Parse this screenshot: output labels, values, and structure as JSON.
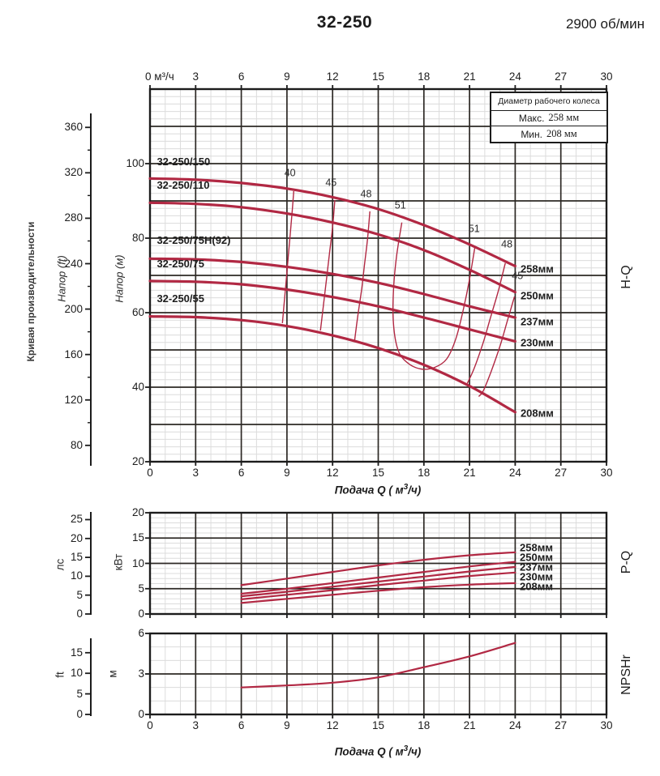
{
  "header": {
    "model": "32-250",
    "speed": "2900 об/мин"
  },
  "side_label": "Кривая производительности",
  "colors": {
    "curve": "#b12843",
    "grid_major": "#2d2925",
    "grid_minor": "#dcdcdc",
    "border": "#1c1c1c"
  },
  "flow_axis": {
    "top_first_label": "0 м³/ч",
    "major_labels": [
      "0",
      "3",
      "6",
      "9",
      "12",
      "15",
      "18",
      "21",
      "24",
      "27",
      "30"
    ],
    "title_pre": "Подача Q ( м",
    "title_sup": "3",
    "title_post": "/ч)"
  },
  "legend": {
    "title": "Диаметр рабочего колеса",
    "max_label": "Макс.",
    "max_value": "258 мм",
    "min_label": "Мин.",
    "min_value": "208 мм"
  },
  "chart_data": [
    {
      "id": "hq",
      "type": "line",
      "title": "H-Q",
      "xlabel": "Подача Q (м³/ч)",
      "xlim": [
        0,
        30
      ],
      "x_major": 3,
      "x_minor": 1,
      "ylim": [
        20,
        120
      ],
      "y_major": 10,
      "y_minor": 2,
      "primary_y": {
        "unit": "Напор (м)",
        "ticks": [
          100,
          80,
          60,
          40,
          20
        ]
      },
      "secondary_y": {
        "unit": "Напор (ft)",
        "ticks": [
          360,
          320,
          280,
          240,
          200,
          160,
          120,
          80
        ],
        "unit_factor": 0.3048
      },
      "series": [
        {
          "name": "32-250/150",
          "diameter": "258мм",
          "points": [
            [
              0,
              96
            ],
            [
              3,
              95.7
            ],
            [
              6,
              94.8
            ],
            [
              9,
              93.3
            ],
            [
              12,
              91
            ],
            [
              15,
              87.8
            ],
            [
              18,
              83.5
            ],
            [
              21,
              78.3
            ],
            [
              24,
              72.5
            ]
          ],
          "label_pos": [
            0.45,
            98.8
          ],
          "dia_pos": [
            24.35,
            71.5
          ]
        },
        {
          "name": "32-250/110",
          "diameter": "250мм",
          "points": [
            [
              0,
              89.5
            ],
            [
              3,
              89.2
            ],
            [
              6,
              88.3
            ],
            [
              9,
              86.6
            ],
            [
              12,
              84.2
            ],
            [
              15,
              81
            ],
            [
              18,
              76.8
            ],
            [
              21,
              71.5
            ],
            [
              24,
              65.5
            ]
          ],
          "label_pos": [
            0.45,
            92.5
          ],
          "dia_pos": [
            24.35,
            64.3
          ]
        },
        {
          "name": "32-250/75H(92)",
          "diameter": "237мм",
          "points": [
            [
              0,
              74.5
            ],
            [
              3,
              74.3
            ],
            [
              6,
              73.6
            ],
            [
              9,
              72.3
            ],
            [
              12,
              70.4
            ],
            [
              15,
              68
            ],
            [
              18,
              65
            ],
            [
              21,
              61.7
            ],
            [
              24,
              58.7
            ]
          ],
          "label_pos": [
            0.45,
            77.6
          ],
          "dia_pos": [
            24.35,
            57.3
          ]
        },
        {
          "name": "32-250/75",
          "diameter": "230мм",
          "points": [
            [
              0,
              68.5
            ],
            [
              3,
              68.3
            ],
            [
              6,
              67.6
            ],
            [
              9,
              66.2
            ],
            [
              12,
              64.2
            ],
            [
              15,
              61.7
            ],
            [
              18,
              58.7
            ],
            [
              21,
              55.5
            ],
            [
              24,
              52.3
            ]
          ],
          "label_pos": [
            0.45,
            71.4
          ],
          "dia_pos": [
            24.35,
            51.8
          ]
        },
        {
          "name": "32-250/55",
          "diameter": "208мм",
          "points": [
            [
              0,
              59
            ],
            [
              3,
              58.8
            ],
            [
              6,
              58
            ],
            [
              9,
              56.4
            ],
            [
              12,
              53.9
            ],
            [
              15,
              50.5
            ],
            [
              18,
              46
            ],
            [
              21,
              40.3
            ],
            [
              24,
              33.3
            ]
          ],
          "label_pos": [
            0.45,
            62
          ],
          "dia_pos": [
            24.35,
            32.8
          ]
        }
      ],
      "efficiency_lines": [
        {
          "points": [
            [
              9.45,
              92.6
            ],
            [
              9.3,
              85
            ],
            [
              9.15,
              78
            ],
            [
              9,
              71
            ],
            [
              8.85,
              64
            ],
            [
              8.7,
              57.2
            ]
          ],
          "labels": [
            {
              "text": "40",
              "pos": [
                9.2,
                95.8
              ]
            }
          ]
        },
        {
          "points": [
            [
              12.15,
              90.2
            ],
            [
              12,
              83
            ],
            [
              11.8,
              76
            ],
            [
              11.6,
              69
            ],
            [
              11.4,
              62
            ],
            [
              11.2,
              55.2
            ]
          ],
          "labels": [
            {
              "text": "45",
              "pos": [
                11.9,
                93.2
              ]
            }
          ]
        },
        {
          "points": [
            [
              14.45,
              87.2
            ],
            [
              14.3,
              80
            ],
            [
              14.1,
              73
            ],
            [
              13.9,
              66
            ],
            [
              13.65,
              59
            ],
            [
              13.45,
              52.6
            ]
          ],
          "labels": [
            {
              "text": "48",
              "pos": [
                14.2,
                90.3
              ]
            }
          ]
        },
        {
          "points": [
            [
              16.55,
              84.2
            ],
            [
              16.2,
              75
            ],
            [
              16,
              66
            ],
            [
              16,
              57
            ],
            [
              16.3,
              50
            ],
            [
              16.9,
              46.6
            ],
            [
              17.8,
              44.9
            ],
            [
              18.7,
              45.3
            ],
            [
              19.5,
              47.6
            ],
            [
              20.1,
              53
            ],
            [
              20.6,
              61
            ],
            [
              21,
              69
            ],
            [
              21.35,
              77.6
            ]
          ],
          "labels": [
            {
              "text": "51",
              "pos": [
                16.45,
                87.2
              ]
            },
            {
              "text": "51",
              "pos": [
                21.3,
                80.8
              ]
            }
          ]
        },
        {
          "points": [
            [
              23.35,
              73.3
            ],
            [
              22.9,
              66
            ],
            [
              22.4,
              59
            ],
            [
              21.9,
              52
            ],
            [
              21.3,
              45
            ],
            [
              20.85,
              41
            ]
          ],
          "labels": [
            {
              "text": "48",
              "pos": [
                23.45,
                76.8
              ]
            }
          ]
        },
        {
          "points": [
            [
              23.95,
              64.3
            ],
            [
              23.5,
              58
            ],
            [
              23,
              51
            ],
            [
              22.4,
              44
            ],
            [
              21.9,
              39
            ],
            [
              21.6,
              37.5
            ]
          ],
          "labels": [
            {
              "text": "45",
              "pos": [
                24.15,
                68.3
              ]
            }
          ]
        }
      ]
    },
    {
      "id": "pq",
      "type": "line",
      "title": "P-Q",
      "xlim": [
        0,
        30
      ],
      "x_major": 3,
      "x_minor": 1,
      "ylim": [
        0,
        20
      ],
      "y_major": 5,
      "y_minor": 1,
      "primary_y": {
        "unit": "кВт",
        "ticks": [
          20,
          15,
          10,
          5,
          0
        ]
      },
      "secondary_y": {
        "unit": "лс",
        "ticks": [
          25,
          20,
          15,
          10,
          5,
          0
        ],
        "unit_factor": 0.7457
      },
      "series": [
        {
          "name": "258мм",
          "points": [
            [
              6,
              5.7
            ],
            [
              9,
              7
            ],
            [
              12,
              8.3
            ],
            [
              15,
              9.6
            ],
            [
              18,
              10.7
            ],
            [
              21,
              11.6
            ],
            [
              24,
              12.2
            ]
          ],
          "dia_pos": [
            24.3,
            13
          ]
        },
        {
          "name": "250мм",
          "points": [
            [
              6,
              4
            ],
            [
              9,
              5
            ],
            [
              12,
              6.1
            ],
            [
              15,
              7.2
            ],
            [
              18,
              8.3
            ],
            [
              21,
              9.4
            ],
            [
              24,
              10.3
            ]
          ],
          "dia_pos": [
            24.3,
            11
          ]
        },
        {
          "name": "237мм",
          "points": [
            [
              6,
              3.5
            ],
            [
              9,
              4.4
            ],
            [
              12,
              5.4
            ],
            [
              15,
              6.4
            ],
            [
              18,
              7.4
            ],
            [
              21,
              8.4
            ],
            [
              24,
              9.3
            ]
          ],
          "dia_pos": [
            24.3,
            9.1
          ]
        },
        {
          "name": "230мм",
          "points": [
            [
              6,
              2.9
            ],
            [
              9,
              3.8
            ],
            [
              12,
              4.7
            ],
            [
              15,
              5.7
            ],
            [
              18,
              6.6
            ],
            [
              21,
              7.5
            ],
            [
              24,
              8.2
            ]
          ],
          "dia_pos": [
            24.3,
            7.2
          ]
        },
        {
          "name": "208мм",
          "points": [
            [
              6,
              2.2
            ],
            [
              9,
              3
            ],
            [
              12,
              3.8
            ],
            [
              15,
              4.6
            ],
            [
              18,
              5.3
            ],
            [
              21,
              5.8
            ],
            [
              24,
              6.1
            ]
          ],
          "dia_pos": [
            24.3,
            5.3
          ]
        }
      ]
    },
    {
      "id": "npshr",
      "type": "line",
      "title": "NPSHr",
      "xlabel": "Подача Q (м³/ч)",
      "xlim": [
        0,
        30
      ],
      "x_major": 3,
      "x_minor": 1,
      "ylim": [
        0,
        6
      ],
      "y_major": 3,
      "y_minor": 1,
      "primary_y": {
        "unit": "м",
        "ticks": [
          6,
          3,
          0
        ]
      },
      "secondary_y": {
        "unit": "ft",
        "ticks": [
          15,
          10,
          5,
          0
        ],
        "unit_factor": 0.3048
      },
      "series": [
        {
          "name": "NPSHr",
          "points": [
            [
              6,
              2
            ],
            [
              9,
              2.15
            ],
            [
              12,
              2.35
            ],
            [
              15,
              2.75
            ],
            [
              18,
              3.5
            ],
            [
              21,
              4.3
            ],
            [
              24,
              5.3
            ]
          ]
        }
      ]
    }
  ]
}
